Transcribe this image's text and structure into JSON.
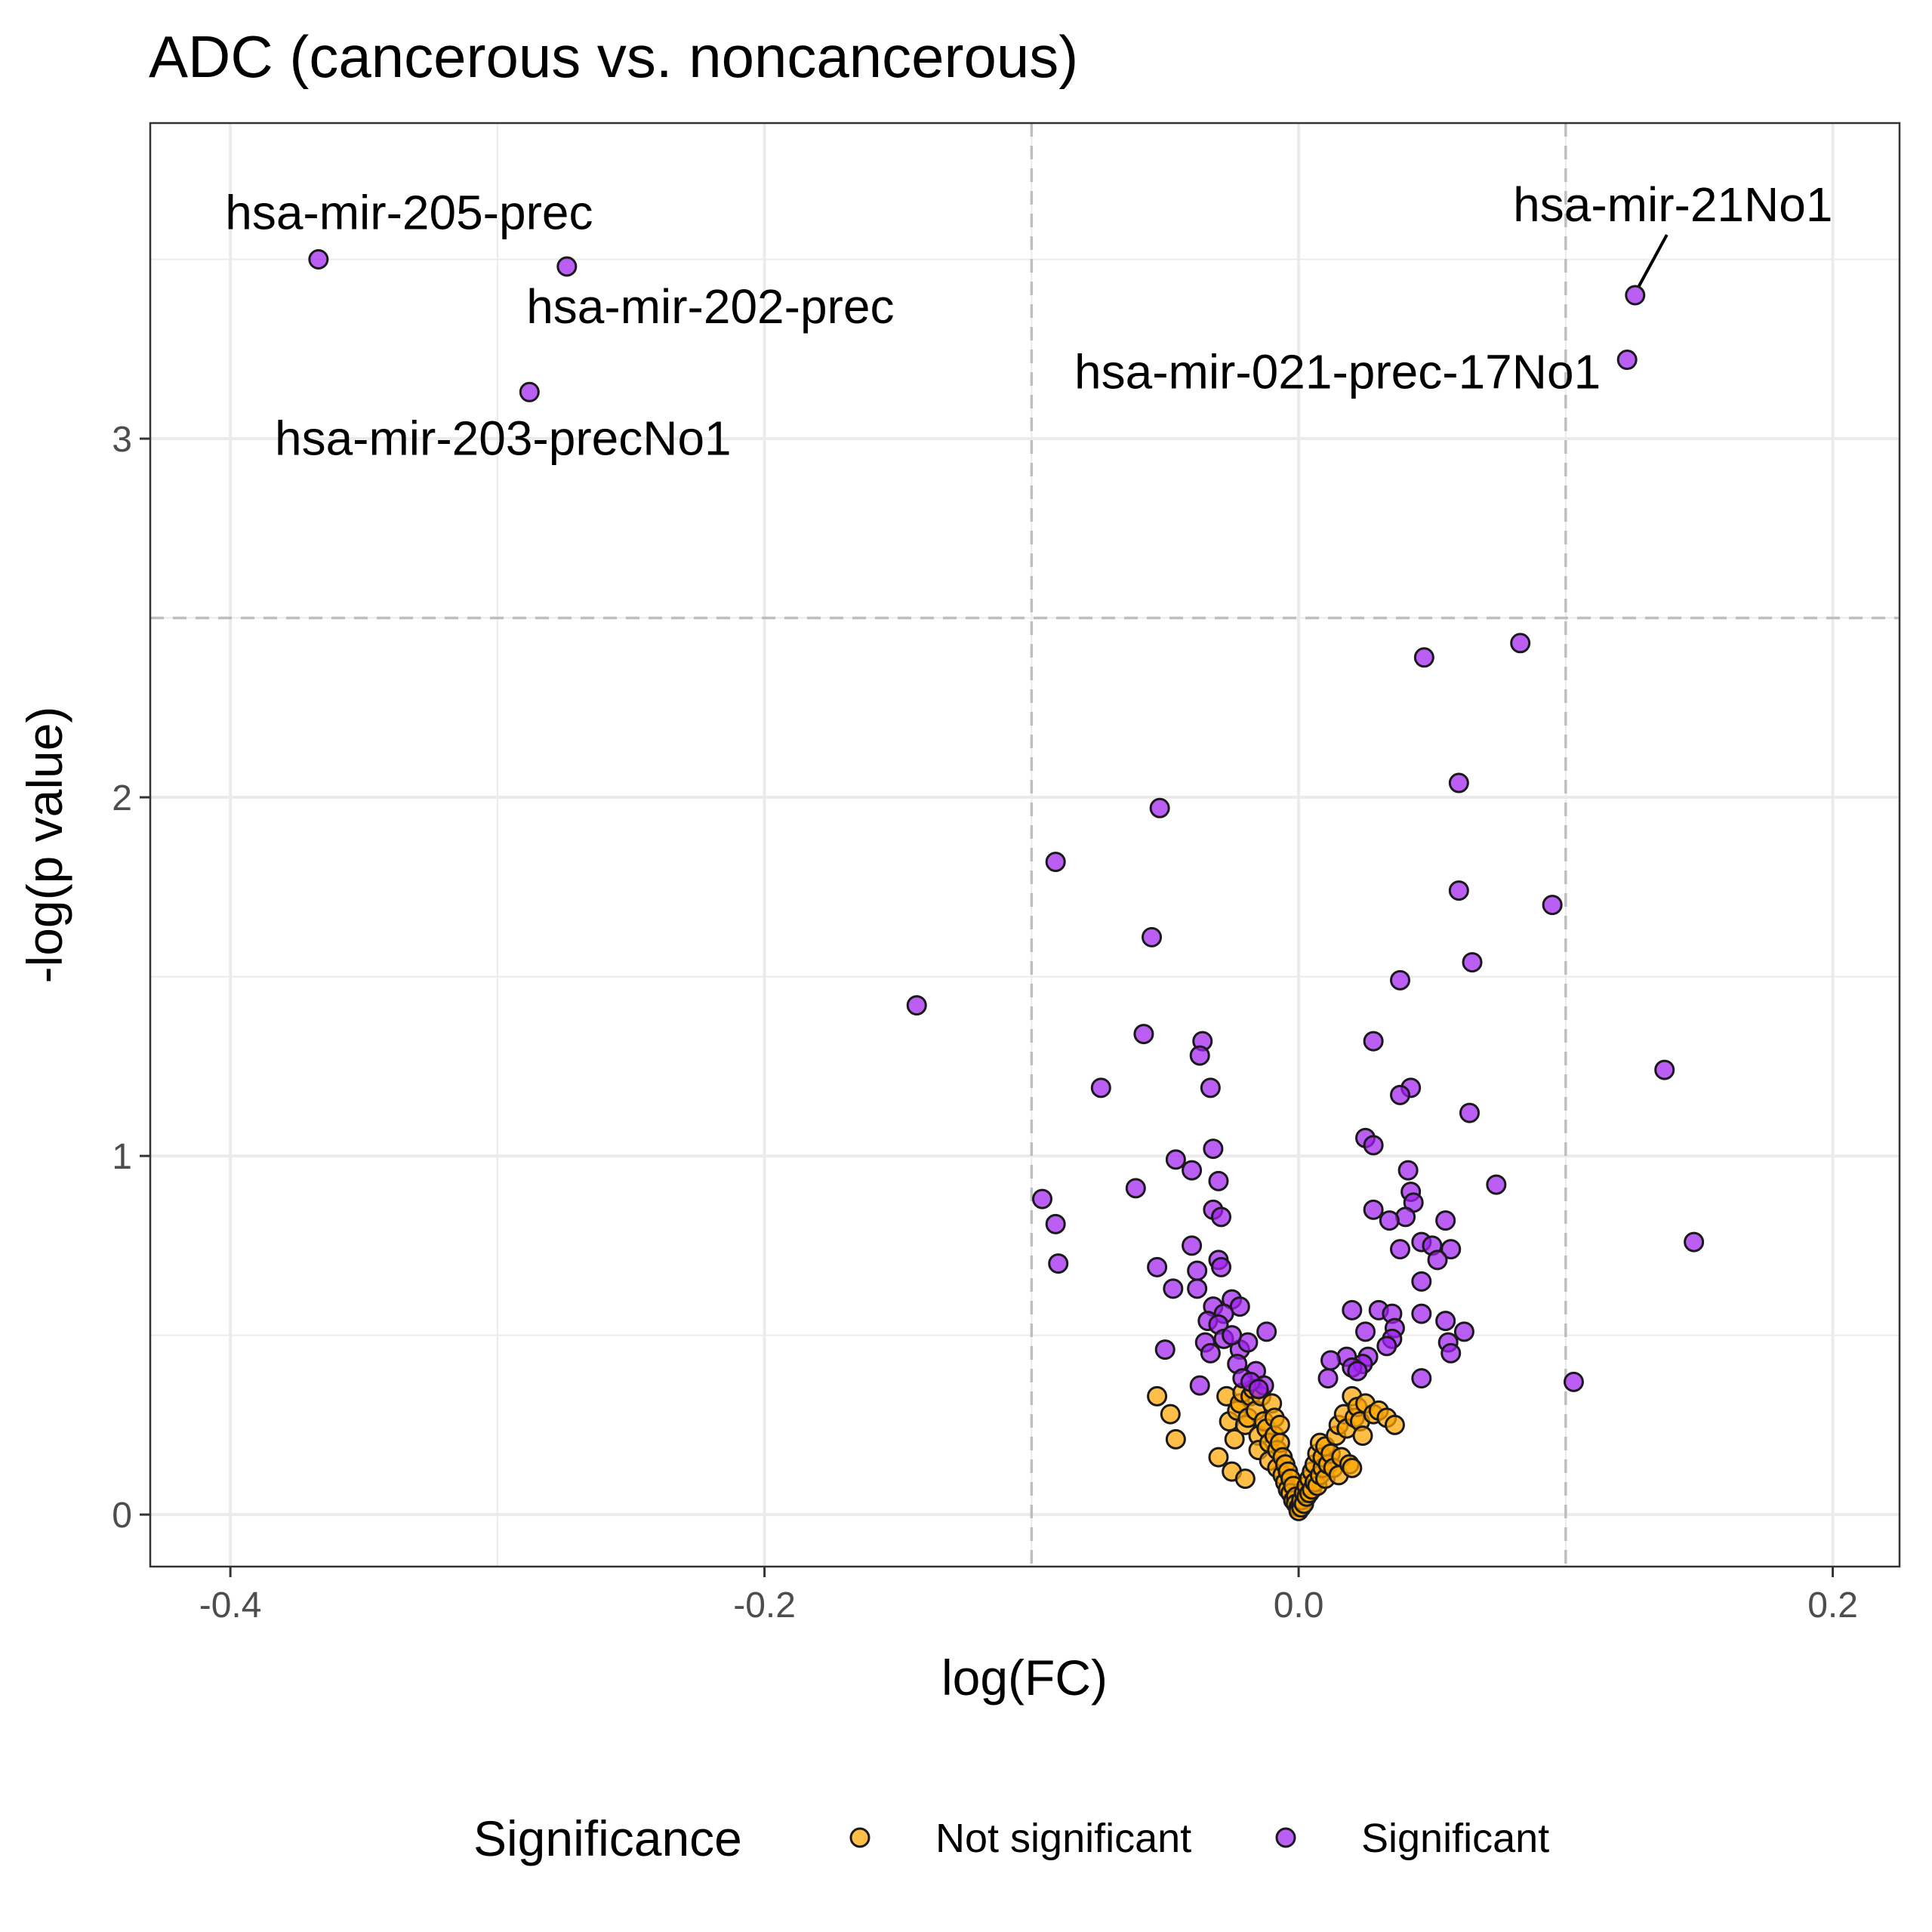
{
  "chart_data": {
    "type": "scatter",
    "title": "ADC (cancerous vs. noncancerous)",
    "xlabel": "log(FC)",
    "ylabel": "-log(p value)",
    "xlim": [
      -0.43,
      0.225
    ],
    "ylim": [
      -0.145,
      3.88
    ],
    "x_ticks": [
      -0.4,
      -0.2,
      0.0,
      0.2
    ],
    "x_tick_labels": [
      "-0.4",
      "-0.2",
      "0.0",
      "0.2"
    ],
    "y_ticks": [
      0,
      1,
      2,
      3
    ],
    "y_tick_labels": [
      "0",
      "1",
      "2",
      "3"
    ],
    "grid": true,
    "thresholds": {
      "x": [
        -0.1,
        0.1
      ],
      "y": [
        2.5
      ]
    },
    "legend": {
      "title": "Significance",
      "position": "bottom",
      "entries": [
        {
          "label": "Not significant",
          "color": "#FFA500"
        },
        {
          "label": "Significant",
          "color": "#A020F0"
        }
      ]
    },
    "colors": {
      "Not significant": "#FFA500",
      "Significant": "#A020F0"
    },
    "annotations": [
      {
        "text": "hsa-mir-205-prec",
        "x": -0.367,
        "y": 3.5
      },
      {
        "text": "hsa-mir-202-prec",
        "x": -0.274,
        "y": 3.48
      },
      {
        "text": "hsa-mir-203-precNo1",
        "x": -0.288,
        "y": 3.13
      },
      {
        "text": "hsa-mir-21No1",
        "x": 0.126,
        "y": 3.4
      },
      {
        "text": "hsa-mir-021-prec-17No1",
        "x": 0.123,
        "y": 3.22
      }
    ],
    "series": [
      {
        "name": "Not significant",
        "points": [
          [
            -0.053,
            0.33
          ],
          [
            -0.048,
            0.28
          ],
          [
            -0.046,
            0.21
          ],
          [
            -0.03,
            0.16
          ],
          [
            -0.027,
            0.33
          ],
          [
            -0.026,
            0.26
          ],
          [
            -0.024,
            0.21
          ],
          [
            -0.023,
            0.29
          ],
          [
            -0.022,
            0.31
          ],
          [
            -0.021,
            0.34
          ],
          [
            -0.02,
            0.25
          ],
          [
            -0.019,
            0.27
          ],
          [
            -0.018,
            0.33
          ],
          [
            -0.017,
            0.35
          ],
          [
            -0.016,
            0.29
          ],
          [
            -0.015,
            0.22
          ],
          [
            -0.015,
            0.18
          ],
          [
            -0.014,
            0.33
          ],
          [
            -0.013,
            0.26
          ],
          [
            -0.012,
            0.24
          ],
          [
            -0.011,
            0.2
          ],
          [
            -0.011,
            0.15
          ],
          [
            -0.01,
            0.31
          ],
          [
            -0.009,
            0.27
          ],
          [
            -0.009,
            0.22
          ],
          [
            -0.008,
            0.18
          ],
          [
            -0.008,
            0.13
          ],
          [
            -0.007,
            0.25
          ],
          [
            -0.007,
            0.2
          ],
          [
            -0.006,
            0.16
          ],
          [
            -0.006,
            0.11
          ],
          [
            -0.005,
            0.14
          ],
          [
            -0.005,
            0.09
          ],
          [
            -0.004,
            0.12
          ],
          [
            -0.004,
            0.07
          ],
          [
            -0.003,
            0.1
          ],
          [
            -0.003,
            0.06
          ],
          [
            -0.002,
            0.08
          ],
          [
            -0.002,
            0.04
          ],
          [
            -0.001,
            0.05
          ],
          [
            -0.001,
            0.03
          ],
          [
            0.0,
            0.02
          ],
          [
            0.0,
            0.01
          ],
          [
            0.001,
            0.02
          ],
          [
            0.001,
            0.04
          ],
          [
            0.002,
            0.03
          ],
          [
            0.002,
            0.06
          ],
          [
            0.003,
            0.05
          ],
          [
            0.003,
            0.08
          ],
          [
            0.004,
            0.06
          ],
          [
            0.004,
            0.1
          ],
          [
            0.005,
            0.07
          ],
          [
            0.005,
            0.12
          ],
          [
            0.006,
            0.09
          ],
          [
            0.006,
            0.14
          ],
          [
            0.007,
            0.08
          ],
          [
            0.007,
            0.17
          ],
          [
            0.008,
            0.11
          ],
          [
            0.008,
            0.2
          ],
          [
            0.009,
            0.13
          ],
          [
            0.009,
            0.16
          ],
          [
            0.01,
            0.1
          ],
          [
            0.01,
            0.19
          ],
          [
            0.011,
            0.14
          ],
          [
            0.012,
            0.17
          ],
          [
            0.013,
            0.13
          ],
          [
            0.014,
            0.22
          ],
          [
            0.015,
            0.11
          ],
          [
            0.015,
            0.25
          ],
          [
            0.016,
            0.16
          ],
          [
            0.017,
            0.28
          ],
          [
            0.018,
            0.24
          ],
          [
            0.019,
            0.14
          ],
          [
            0.02,
            0.33
          ],
          [
            0.021,
            0.27
          ],
          [
            0.022,
            0.3
          ],
          [
            0.023,
            0.26
          ],
          [
            0.025,
            0.31
          ],
          [
            0.028,
            0.28
          ],
          [
            0.03,
            0.29
          ],
          [
            0.033,
            0.27
          ],
          [
            0.036,
            0.25
          ],
          [
            -0.025,
            0.12
          ],
          [
            -0.02,
            0.1
          ],
          [
            0.02,
            0.13
          ],
          [
            0.024,
            0.22
          ]
        ]
      },
      {
        "name": "Significant",
        "points": [
          [
            -0.367,
            3.5
          ],
          [
            -0.274,
            3.48
          ],
          [
            -0.288,
            3.13
          ],
          [
            0.126,
            3.4
          ],
          [
            0.123,
            3.22
          ],
          [
            0.083,
            2.43
          ],
          [
            0.047,
            2.39
          ],
          [
            0.06,
            2.04
          ],
          [
            -0.052,
            1.97
          ],
          [
            -0.091,
            1.82
          ],
          [
            0.06,
            1.74
          ],
          [
            0.095,
            1.7
          ],
          [
            -0.055,
            1.61
          ],
          [
            0.065,
            1.54
          ],
          [
            0.038,
            1.49
          ],
          [
            -0.143,
            1.42
          ],
          [
            -0.058,
            1.34
          ],
          [
            -0.036,
            1.32
          ],
          [
            0.028,
            1.32
          ],
          [
            -0.037,
            1.28
          ],
          [
            0.137,
            1.24
          ],
          [
            -0.074,
            1.19
          ],
          [
            -0.033,
            1.19
          ],
          [
            0.042,
            1.19
          ],
          [
            0.038,
            1.17
          ],
          [
            0.064,
            1.12
          ],
          [
            0.025,
            1.05
          ],
          [
            0.028,
            1.03
          ],
          [
            -0.032,
            1.02
          ],
          [
            -0.046,
            0.99
          ],
          [
            -0.04,
            0.96
          ],
          [
            0.041,
            0.96
          ],
          [
            -0.061,
            0.91
          ],
          [
            -0.03,
            0.93
          ],
          [
            0.074,
            0.92
          ],
          [
            0.042,
            0.9
          ],
          [
            0.043,
            0.87
          ],
          [
            -0.096,
            0.88
          ],
          [
            -0.032,
            0.85
          ],
          [
            0.028,
            0.85
          ],
          [
            -0.029,
            0.83
          ],
          [
            0.04,
            0.83
          ],
          [
            0.034,
            0.82
          ],
          [
            0.055,
            0.82
          ],
          [
            -0.091,
            0.81
          ],
          [
            0.046,
            0.76
          ],
          [
            0.05,
            0.75
          ],
          [
            0.057,
            0.74
          ],
          [
            -0.04,
            0.75
          ],
          [
            0.038,
            0.74
          ],
          [
            0.052,
            0.71
          ],
          [
            0.148,
            0.76
          ],
          [
            -0.03,
            0.71
          ],
          [
            -0.029,
            0.69
          ],
          [
            -0.09,
            0.7
          ],
          [
            -0.053,
            0.69
          ],
          [
            -0.038,
            0.68
          ],
          [
            0.046,
            0.65
          ],
          [
            -0.047,
            0.63
          ],
          [
            -0.038,
            0.63
          ],
          [
            -0.025,
            0.6
          ],
          [
            -0.022,
            0.58
          ],
          [
            -0.032,
            0.58
          ],
          [
            -0.028,
            0.56
          ],
          [
            0.02,
            0.57
          ],
          [
            0.03,
            0.57
          ],
          [
            0.035,
            0.56
          ],
          [
            0.046,
            0.56
          ],
          [
            -0.034,
            0.54
          ],
          [
            -0.03,
            0.53
          ],
          [
            0.055,
            0.54
          ],
          [
            0.036,
            0.52
          ],
          [
            0.062,
            0.51
          ],
          [
            -0.012,
            0.51
          ],
          [
            0.025,
            0.51
          ],
          [
            -0.028,
            0.49
          ],
          [
            0.035,
            0.49
          ],
          [
            0.056,
            0.48
          ],
          [
            -0.035,
            0.48
          ],
          [
            0.033,
            0.47
          ],
          [
            -0.05,
            0.46
          ],
          [
            -0.022,
            0.46
          ],
          [
            -0.019,
            0.48
          ],
          [
            -0.025,
            0.5
          ],
          [
            0.057,
            0.45
          ],
          [
            -0.033,
            0.45
          ],
          [
            0.018,
            0.44
          ],
          [
            0.026,
            0.44
          ],
          [
            0.012,
            0.43
          ],
          [
            -0.023,
            0.42
          ],
          [
            0.024,
            0.42
          ],
          [
            0.02,
            0.41
          ],
          [
            0.022,
            0.4
          ],
          [
            -0.016,
            0.4
          ],
          [
            0.046,
            0.38
          ],
          [
            0.011,
            0.38
          ],
          [
            0.103,
            0.37
          ],
          [
            -0.037,
            0.36
          ],
          [
            -0.013,
            0.36
          ],
          [
            -0.021,
            0.38
          ],
          [
            -0.018,
            0.37
          ],
          [
            -0.015,
            0.35
          ]
        ]
      }
    ]
  }
}
